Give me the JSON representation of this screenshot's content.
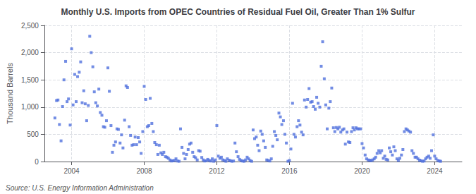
{
  "chart_data": {
    "type": "scatter",
    "title": "Monthly U.S. Imports from OPEC Countries of Residual Fuel Oil, Greater Than 1% Sulfur",
    "ylabel": "Thousand Barrels",
    "annotations": [
      "Source: U.S. Energy Information Administration"
    ],
    "marker": "square",
    "grid": true,
    "xlim": [
      2002.5,
      2025.5
    ],
    "xticks": [
      2004,
      2008,
      2012,
      2016,
      2020,
      2024
    ],
    "ylim": [
      0,
      2500
    ],
    "yticks": [
      0,
      500,
      {
        "value": 1000,
        "label": "1,000"
      },
      {
        "value": 1500,
        "label": "1,500"
      },
      {
        "value": 2000,
        "label": "2,000"
      },
      {
        "value": 2500,
        "label": "2,500"
      }
    ],
    "x": [
      2003.08,
      2003.17,
      2003.25,
      2003.33,
      2003.42,
      2003.5,
      2003.58,
      2003.67,
      2003.75,
      2003.83,
      2003.92,
      2004.0,
      2004.08,
      2004.17,
      2004.25,
      2004.33,
      2004.42,
      2004.5,
      2004.58,
      2004.67,
      2004.75,
      2004.83,
      2004.92,
      2005.0,
      2005.08,
      2005.17,
      2005.25,
      2005.33,
      2005.42,
      2005.5,
      2005.58,
      2005.67,
      2005.75,
      2005.83,
      2005.92,
      2006.0,
      2006.08,
      2006.17,
      2006.25,
      2006.33,
      2006.42,
      2006.5,
      2006.58,
      2006.67,
      2006.75,
      2006.83,
      2006.92,
      2007.0,
      2007.08,
      2007.17,
      2007.25,
      2007.33,
      2007.42,
      2007.5,
      2007.58,
      2007.67,
      2007.75,
      2007.83,
      2007.92,
      2008.0,
      2008.08,
      2008.17,
      2008.25,
      2008.33,
      2008.42,
      2008.5,
      2008.58,
      2008.67,
      2008.75,
      2008.83,
      2008.92,
      2009.0,
      2009.08,
      2009.17,
      2009.25,
      2009.33,
      2009.42,
      2009.5,
      2009.58,
      2009.67,
      2009.75,
      2009.83,
      2009.92,
      2010.0,
      2010.08,
      2010.17,
      2010.25,
      2010.33,
      2010.42,
      2010.5,
      2010.58,
      2010.67,
      2010.75,
      2010.83,
      2010.92,
      2011.0,
      2011.08,
      2011.17,
      2011.25,
      2011.33,
      2011.42,
      2011.5,
      2011.58,
      2011.67,
      2011.75,
      2011.83,
      2011.92,
      2012.0,
      2012.08,
      2012.17,
      2012.25,
      2012.33,
      2012.42,
      2012.5,
      2012.58,
      2012.67,
      2012.75,
      2012.83,
      2012.92,
      2013.0,
      2013.08,
      2013.17,
      2013.25,
      2013.33,
      2013.42,
      2013.5,
      2013.58,
      2013.67,
      2013.75,
      2013.83,
      2013.92,
      2014.0,
      2014.08,
      2014.17,
      2014.25,
      2014.33,
      2014.42,
      2014.5,
      2014.58,
      2014.67,
      2014.75,
      2014.83,
      2014.92,
      2015.0,
      2015.08,
      2015.17,
      2015.25,
      2015.33,
      2015.42,
      2015.5,
      2015.58,
      2015.67,
      2015.75,
      2015.83,
      2015.92,
      2016.0,
      2016.08,
      2016.17,
      2016.25,
      2016.33,
      2016.42,
      2016.5,
      2016.58,
      2016.67,
      2016.75,
      2016.83,
      2016.92,
      2017.0,
      2017.08,
      2017.17,
      2017.25,
      2017.33,
      2017.42,
      2017.5,
      2017.58,
      2017.67,
      2017.75,
      2017.83,
      2017.92,
      2018.0,
      2018.08,
      2018.17,
      2018.25,
      2018.33,
      2018.42,
      2018.5,
      2018.58,
      2018.67,
      2018.75,
      2018.83,
      2018.92,
      2019.0,
      2019.08,
      2019.17,
      2019.25,
      2019.33,
      2019.42,
      2019.5,
      2019.58,
      2019.67,
      2019.75,
      2019.83,
      2019.92,
      2020.0,
      2020.08,
      2020.17,
      2020.25,
      2020.33,
      2020.42,
      2020.5,
      2020.58,
      2020.67,
      2020.75,
      2020.83,
      2020.92,
      2021.0,
      2021.08,
      2021.17,
      2021.25,
      2021.33,
      2021.42,
      2021.5,
      2021.58,
      2021.67,
      2021.75,
      2021.83,
      2021.92,
      2022.0,
      2022.08,
      2022.17,
      2022.25,
      2022.33,
      2022.42,
      2022.5,
      2022.58,
      2022.67,
      2022.75,
      2022.83,
      2022.92,
      2023.0,
      2023.08,
      2023.17,
      2023.25,
      2023.33,
      2023.42,
      2023.5,
      2023.58,
      2023.67,
      2023.75,
      2023.83,
      2023.92,
      2024.0,
      2024.08,
      2024.17,
      2024.25,
      2024.33
    ],
    "values": [
      800,
      1120,
      1130,
      680,
      380,
      1010,
      1500,
      1840,
      1100,
      1150,
      670,
      2070,
      1040,
      1600,
      1100,
      1560,
      1640,
      1830,
      1080,
      1300,
      1060,
      750,
      1030,
      2300,
      2000,
      1740,
      1280,
      1080,
      1020,
      1330,
      900,
      850,
      640,
      630,
      750,
      1720,
      1290,
      660,
      170,
      300,
      360,
      600,
      590,
      340,
      490,
      250,
      760,
      1390,
      1360,
      640,
      480,
      300,
      310,
      450,
      310,
      440,
      360,
      150,
      550,
      1380,
      1140,
      640,
      660,
      1160,
      700,
      550,
      350,
      310,
      130,
      300,
      160,
      130,
      170,
      90,
      80,
      60,
      30,
      10,
      15,
      20,
      50,
      10,
      5,
      600,
      260,
      150,
      50,
      130,
      220,
      320,
      340,
      170,
      90,
      70,
      30,
      200,
      190,
      75,
      30,
      10,
      15,
      40,
      20,
      10,
      50,
      5,
      30,
      660,
      100,
      60,
      80,
      30,
      20,
      5,
      50,
      25,
      15,
      5,
      10,
      340,
      180,
      90,
      40,
      20,
      10,
      5,
      30,
      80,
      50,
      20,
      5,
      580,
      420,
      450,
      300,
      200,
      560,
      500,
      380,
      260,
      30,
      20,
      10,
      50,
      280,
      550,
      480,
      400,
      890,
      820,
      680,
      750,
      500,
      340,
      5,
      20,
      230,
      1070,
      500,
      450,
      640,
      750,
      670,
      540,
      490,
      1130,
      1000,
      1140,
      1340,
      1090,
      1100,
      1010,
      960,
      1180,
      1070,
      1000,
      1750,
      2200,
      1520,
      1040,
      600,
      980,
      1100,
      1350,
      620,
      550,
      625,
      600,
      630,
      540,
      580,
      600,
      320,
      540,
      360,
      350,
      550,
      620,
      580,
      620,
      600,
      600,
      600,
      330,
      250,
      120,
      50,
      30,
      25,
      15,
      30,
      50,
      80,
      150,
      200,
      160,
      200,
      60,
      100,
      40,
      30,
      250,
      180,
      120,
      270,
      200,
      50,
      20,
      60,
      120,
      220,
      550,
      600,
      580,
      560,
      540,
      200,
      150,
      80,
      80,
      50,
      25,
      15,
      5,
      10,
      50,
      80,
      100,
      60,
      200,
      490,
      100,
      50,
      20,
      10,
      5
    ]
  }
}
